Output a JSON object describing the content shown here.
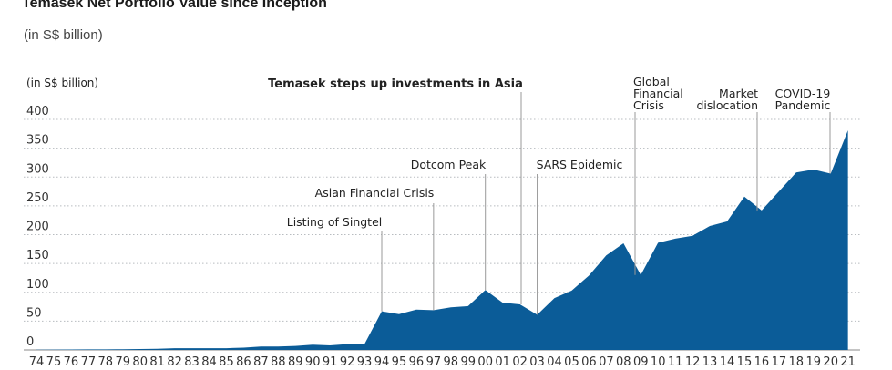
{
  "header": {
    "title": "Temasek Net Portfolio Value since Inception",
    "subtitle": "(in S$ billion)"
  },
  "colors": {
    "area": "#0b5c98",
    "grid": "#b8bcc0",
    "annotation_line": "#999999"
  },
  "chart_data": {
    "type": "area",
    "title": "Temasek Net Portfolio Value since Inception",
    "ylabel": "(in S$ billion)",
    "ylim": [
      0,
      420
    ],
    "yticks": [
      0,
      50,
      100,
      150,
      200,
      250,
      300,
      350,
      400
    ],
    "grid": true,
    "categories": [
      "74",
      "75",
      "76",
      "77",
      "78",
      "79",
      "80",
      "81",
      "82",
      "83",
      "84",
      "85",
      "86",
      "87",
      "88",
      "89",
      "90",
      "91",
      "92",
      "93",
      "94",
      "95",
      "96",
      "97",
      "98",
      "99",
      "00",
      "01",
      "02",
      "03",
      "04",
      "05",
      "06",
      "07",
      "08",
      "09",
      "10",
      "11",
      "12",
      "13",
      "14",
      "15",
      "16",
      "17",
      "18",
      "19",
      "20",
      "21"
    ],
    "values": [
      0.4,
      0.6,
      0.7,
      0.9,
      1,
      1.2,
      1.5,
      2,
      3,
      3,
      3,
      3,
      4,
      6,
      6,
      7,
      9,
      8,
      10,
      10,
      67,
      62,
      70,
      69,
      74,
      76,
      104,
      82,
      79,
      61,
      90,
      103,
      129,
      164,
      185,
      130,
      186,
      193,
      198,
      215,
      223,
      266,
      242,
      275,
      308,
      313,
      306,
      381
    ],
    "annotations": [
      {
        "label": "Listing of Singtel",
        "category": "94",
        "lines": [
          "Listing of Singtel"
        ]
      },
      {
        "label": "Asian Financial Crisis",
        "category": "97",
        "lines": [
          "Asian Financial Crisis"
        ]
      },
      {
        "label": "Dotcom Peak",
        "category": "00",
        "lines": [
          "Dotcom Peak"
        ]
      },
      {
        "label": "Temasek steps up investments in Asia",
        "category": "02",
        "lines": [
          "Temasek steps up investments in Asia"
        ]
      },
      {
        "label": "SARS Epidemic",
        "category": "03",
        "lines": [
          "SARS Epidemic"
        ]
      },
      {
        "label": "Global Financial Crisis",
        "category": "09",
        "lines": [
          "Global",
          "Financial",
          "Crisis"
        ]
      },
      {
        "label": "Market dislocation",
        "category": "16",
        "lines": [
          "Market",
          "dislocation"
        ]
      },
      {
        "label": "COVID-19 Pandemic",
        "category": "20",
        "lines": [
          "COVID-19",
          "Pandemic"
        ]
      }
    ]
  }
}
